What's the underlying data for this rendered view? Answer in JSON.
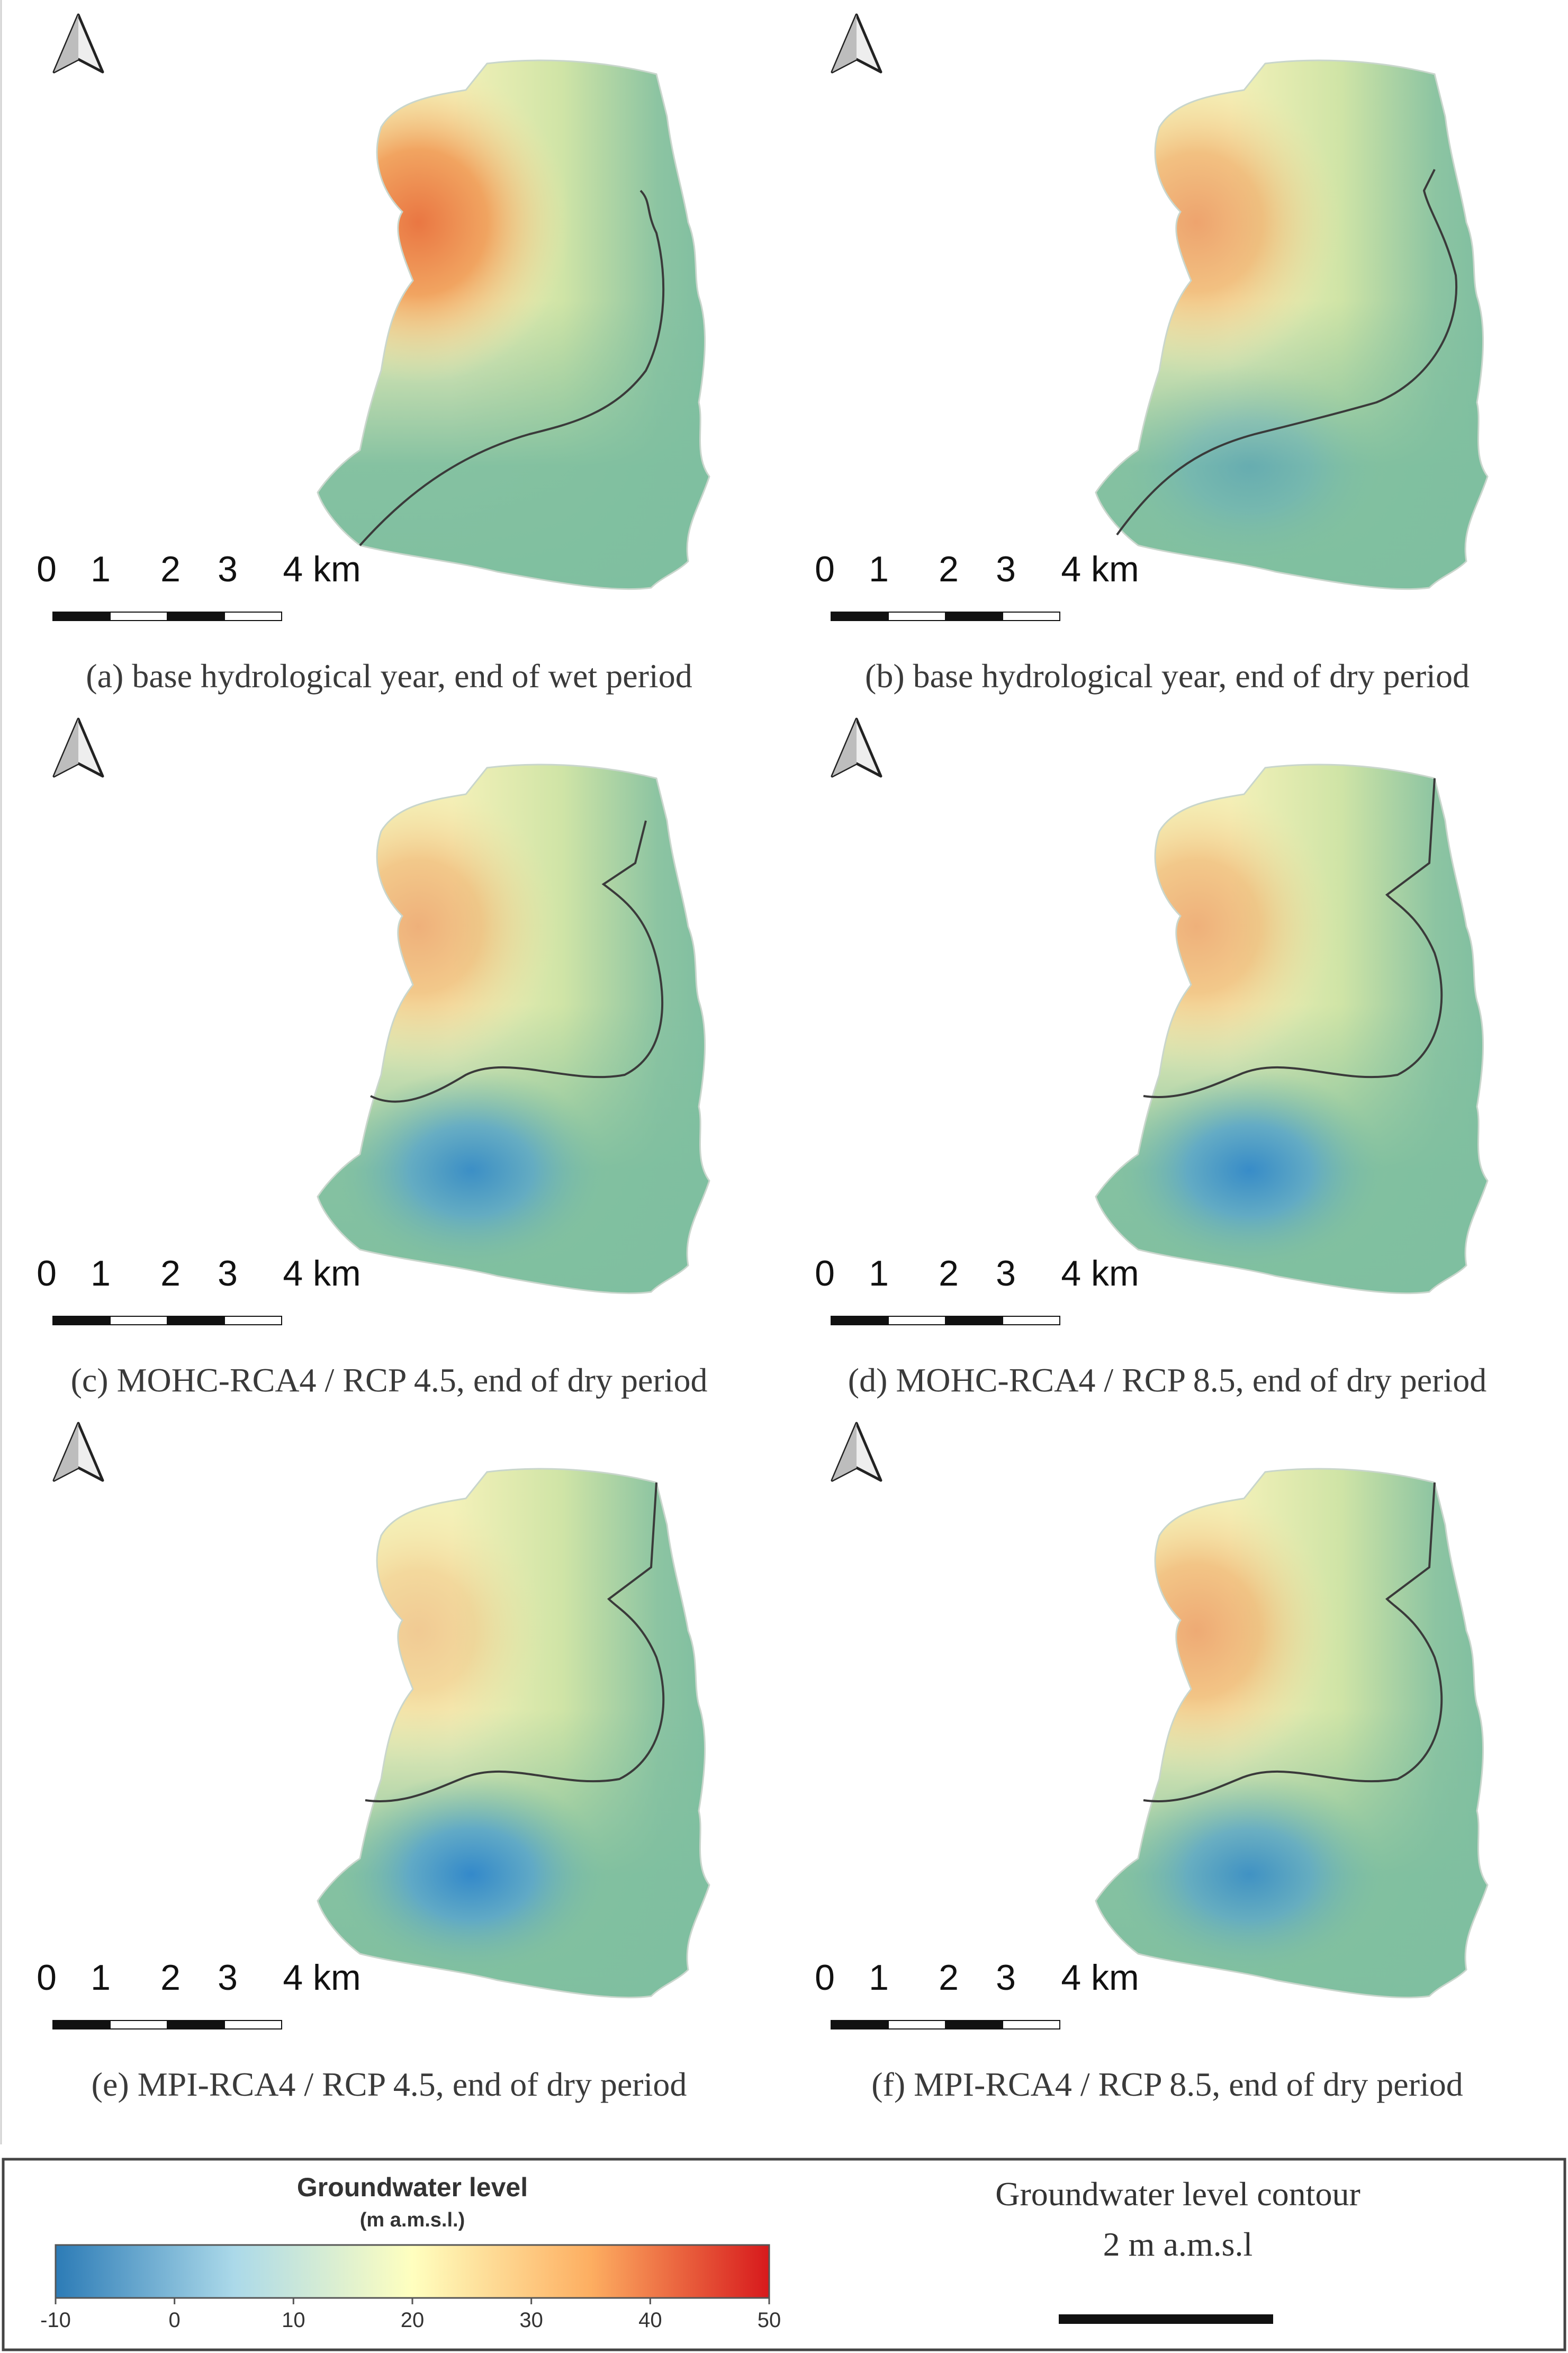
{
  "figure": {
    "panels": [
      {
        "id": "a",
        "caption": "(a) base hydrological year, end of wet period",
        "hot": 0.95,
        "hotspread": 1.0,
        "low": 0.0,
        "contour": "wet"
      },
      {
        "id": "b",
        "caption": "(b) base hydrological year, end of dry period",
        "hot": 0.6,
        "hotspread": 0.9,
        "low": 0.35,
        "contour": "dry1"
      },
      {
        "id": "c",
        "caption": "(c) MOHC-RCA4 / RCP 4.5, end of dry period",
        "hot": 0.5,
        "hotspread": 0.8,
        "low": 0.85,
        "contour": "dry2"
      },
      {
        "id": "d",
        "caption": "(d) MOHC-RCA4 / RCP 8.5, end of dry period",
        "hot": 0.5,
        "hotspread": 0.8,
        "low": 0.9,
        "contour": "dry3"
      },
      {
        "id": "e",
        "caption": "(e) MPI-RCA4 / RCP 4.5, end of dry period",
        "hot": 0.3,
        "hotspread": 0.6,
        "low": 0.95,
        "contour": "dry3"
      },
      {
        "id": "f",
        "caption": "(f) MPI-RCA4 / RCP 8.5, end of dry period",
        "hot": 0.55,
        "hotspread": 0.8,
        "low": 0.8,
        "contour": "dry3"
      }
    ],
    "scale_bar": {
      "labels": [
        "0",
        "1",
        "2",
        "3",
        "4 km"
      ]
    }
  },
  "legend": {
    "colorbar_title": "Groundwater level",
    "colorbar_unit": "(m a.m.s.l.)",
    "ticks": [
      "-10",
      "0",
      "10",
      "20",
      "30",
      "40",
      "50"
    ],
    "tick_values": [
      -10,
      0,
      10,
      20,
      30,
      40,
      50
    ],
    "range": [
      -10,
      50
    ],
    "colors": [
      "#2c7bb6",
      "#abd9e9",
      "#ffffbf",
      "#fdae61",
      "#d7191c"
    ],
    "contour_title": "Groundwater level contour",
    "contour_value": "2 m a.m.s.l"
  },
  "colors": {
    "low": "#3a8fcf",
    "base": "#7fbfa0",
    "mid": "#dfeeaa",
    "cream": "#f8f5c0",
    "hot": "#e96a3a"
  }
}
